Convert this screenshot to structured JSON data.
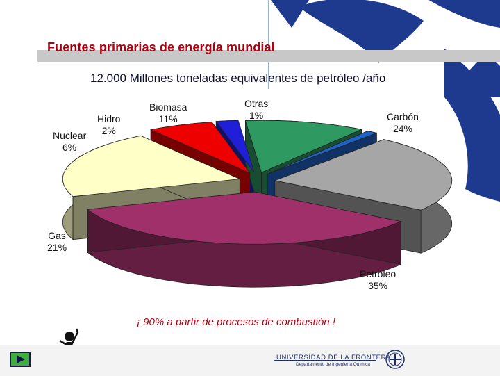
{
  "slide": {
    "title": "Fuentes primarias de energía mundial",
    "subtitle": "12.000 Millones toneladas equivalentes de petróleo /año",
    "footer_note": "¡ 90% a partir de procesos de combustión !"
  },
  "branding": {
    "university": "UNIVERSIDAD DE LA FRONTERA",
    "department": "Departamento de Ingeniería Química",
    "primary_color": "#1d2f6b",
    "title_color": "#b0000f"
  },
  "chart_data": {
    "type": "pie",
    "style": "3d-exploded",
    "title": "",
    "slices": [
      {
        "label": "Carbón",
        "value_label": "24%",
        "value": 24,
        "color": "#a6a6a6"
      },
      {
        "label": "Petróleo",
        "value_label": "35%",
        "value": 35,
        "color": "#a0306a"
      },
      {
        "label": "Gas",
        "value_label": "21%",
        "value": 21,
        "color": "#ffffc8"
      },
      {
        "label": "Nuclear",
        "value_label": "6%",
        "value": 6,
        "color": "#ee0000"
      },
      {
        "label": "Hidro",
        "value_label": "2%",
        "value": 2,
        "color": "#1f1fd8"
      },
      {
        "label": "Biomasa",
        "value_label": "11%",
        "value": 11,
        "color": "#2e9a62"
      },
      {
        "label": "Otras",
        "value_label": "1%",
        "value": 1,
        "color": "#1f63c8"
      }
    ]
  },
  "icons": {
    "next": "next-arrow-icon",
    "figure": "stick-figure-icon",
    "logo": "university-logo-icon",
    "decoration": "corner-logo-decoration"
  }
}
